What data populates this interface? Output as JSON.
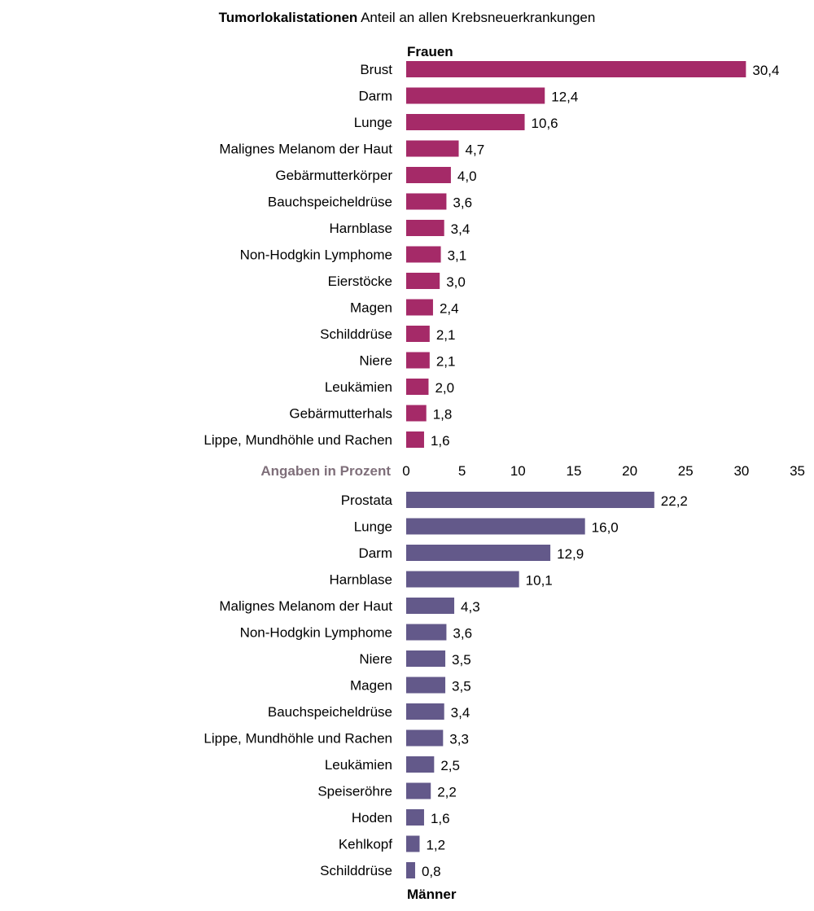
{
  "title": {
    "bold": "Tumorlokalistationen",
    "rest": " Anteil an allen Krebsneuerkrankungen"
  },
  "axis_note": "Angaben in Prozent",
  "colors": {
    "frauen": "#a52a68",
    "maenner": "#63598a",
    "axis_note": "#7f6f7a"
  },
  "chart_data": [
    {
      "type": "bar",
      "orientation": "horizontal",
      "panel_label": "Frauen",
      "categories": [
        "Brust",
        "Darm",
        "Lunge",
        "Malignes Melanom der Haut",
        "Gebärmutterkörper",
        "Bauchspeicheldrüse",
        "Harnblase",
        "Non-Hodgkin Lymphome",
        "Eierstöcke",
        "Magen",
        "Schilddrüse",
        "Niere",
        "Leukämien",
        "Gebärmutterhals",
        "Lippe, Mundhöhle und Rachen"
      ],
      "values": [
        30.4,
        12.4,
        10.6,
        4.7,
        4.0,
        3.6,
        3.4,
        3.1,
        3.0,
        2.4,
        2.1,
        2.1,
        2.0,
        1.8,
        1.6
      ],
      "value_labels": [
        "30,4",
        "12,4",
        "10,6",
        "4,7",
        "4,0",
        "3,6",
        "3,4",
        "3,1",
        "3,0",
        "2,4",
        "2,1",
        "2,1",
        "2,0",
        "1,8",
        "1,6"
      ],
      "xlim": [
        0,
        35
      ],
      "grid": false
    },
    {
      "type": "bar",
      "orientation": "horizontal",
      "panel_label": "Männer",
      "categories": [
        "Prostata",
        "Lunge",
        "Darm",
        "Harnblase",
        "Malignes Melanom der Haut",
        "Non-Hodgkin Lymphome",
        "Niere",
        "Magen",
        "Bauchspeicheldrüse",
        "Lippe, Mundhöhle und Rachen",
        "Leukämien",
        "Speiseröhre",
        "Hoden",
        "Kehlkopf",
        "Schilddrüse"
      ],
      "values": [
        22.2,
        16.0,
        12.9,
        10.1,
        4.3,
        3.6,
        3.5,
        3.5,
        3.4,
        3.3,
        2.5,
        2.2,
        1.6,
        1.2,
        0.8
      ],
      "value_labels": [
        "22,2",
        "16,0",
        "12,9",
        "10,1",
        "4,3",
        "3,6",
        "3,5",
        "3,5",
        "3,4",
        "3,3",
        "2,5",
        "2,2",
        "1,6",
        "1,2",
        "0,8"
      ],
      "xlim": [
        0,
        35
      ],
      "grid": false
    }
  ],
  "shared_axis": {
    "ticks": [
      0,
      5,
      10,
      15,
      20,
      25,
      30,
      35
    ],
    "tick_labels": [
      "0",
      "5",
      "10",
      "15",
      "20",
      "25",
      "30",
      "35"
    ]
  }
}
